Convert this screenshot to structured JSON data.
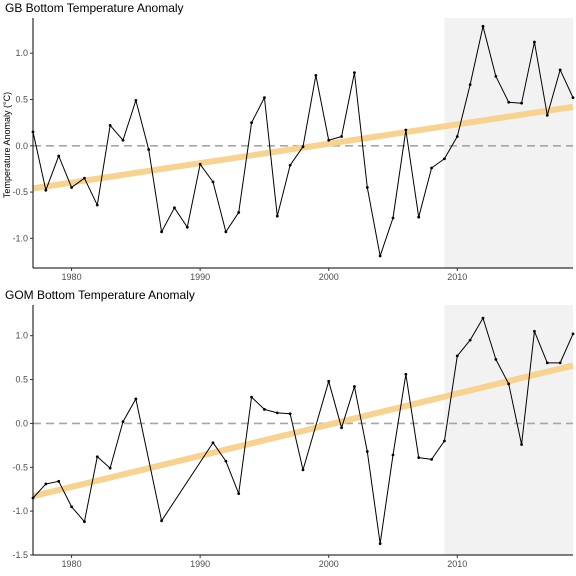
{
  "chart_data": [
    {
      "type": "line",
      "title": "GB Bottom Temperature Anomaly",
      "ylabel": "Temperature Anomaly (°C)",
      "xlabel": "",
      "xlim": [
        1977,
        2019
      ],
      "ylim": [
        -1.32,
        1.38
      ],
      "xticks": [
        1980,
        1990,
        2000,
        2010
      ],
      "yticks": [
        -1.0,
        -0.5,
        0.0,
        0.5,
        1.0
      ],
      "ytick_labels": [
        "-1.0",
        "-0.5",
        "0.0",
        "0.5",
        "1.0"
      ],
      "shaded_region": [
        2009,
        2019
      ],
      "reference_line": 0,
      "trend": {
        "x": [
          1977,
          2019
        ],
        "y": [
          -0.46,
          0.42
        ],
        "color": "#f8d28f"
      },
      "series": [
        {
          "color": "#000000",
          "x": [
            1977,
            1978,
            1979,
            1980,
            1981,
            1982,
            1983,
            1984,
            1985,
            1986,
            1987,
            1988,
            1989,
            1990,
            1991,
            1992,
            1993,
            1994,
            1995,
            1996,
            1997,
            1998,
            1999,
            2000,
            2001,
            2002,
            2003,
            2004,
            2005,
            2006,
            2007,
            2008,
            2009,
            2010,
            2011,
            2012,
            2013,
            2014,
            2015,
            2016,
            2017,
            2018,
            2019
          ],
          "y": [
            0.15,
            -0.48,
            -0.11,
            -0.45,
            -0.35,
            -0.64,
            0.22,
            0.06,
            0.49,
            -0.04,
            -0.93,
            -0.67,
            -0.88,
            -0.2,
            -0.39,
            -0.93,
            -0.72,
            0.25,
            0.52,
            -0.76,
            -0.21,
            -0.01,
            0.76,
            0.06,
            0.1,
            0.79,
            -0.45,
            -1.19,
            -0.78,
            0.17,
            -0.77,
            -0.24,
            -0.14,
            0.1,
            0.66,
            1.29,
            0.75,
            0.47,
            0.46,
            1.12,
            0.33,
            0.82,
            0.52
          ]
        }
      ]
    },
    {
      "type": "line",
      "title": "GOM Bottom Temperature Anomaly",
      "ylabel": "",
      "xlabel": "",
      "xlim": [
        1977,
        2019
      ],
      "ylim": [
        -1.5,
        1.35
      ],
      "xticks": [
        1980,
        1990,
        2000,
        2010
      ],
      "yticks": [
        -1.5,
        -1.0,
        -0.5,
        0.0,
        0.5,
        1.0
      ],
      "ytick_labels": [
        "-1.5",
        "-1.0",
        "-0.5",
        "0.0",
        "0.5",
        "1.0"
      ],
      "shaded_region": [
        2009,
        2019
      ],
      "reference_line": 0,
      "trend": {
        "x": [
          1977,
          2019
        ],
        "y": [
          -0.83,
          0.66
        ],
        "color": "#f8d28f"
      },
      "series": [
        {
          "color": "#000000",
          "x": [
            1977,
            1978,
            1979,
            1980,
            1981,
            1982,
            1983,
            1984,
            1985,
            1987,
            1991,
            1992,
            1993,
            1994,
            1995,
            1996,
            1997,
            1998,
            2000,
            2001,
            2002,
            2003,
            2004,
            2005,
            2006,
            2007,
            2008,
            2009,
            2010,
            2011,
            2012,
            2013,
            2014,
            2015,
            2016,
            2017,
            2018,
            2019
          ],
          "y": [
            -0.85,
            -0.69,
            -0.66,
            -0.95,
            -1.12,
            -0.38,
            -0.51,
            0.02,
            0.28,
            -1.11,
            -0.22,
            -0.43,
            -0.8,
            0.3,
            0.16,
            0.12,
            0.11,
            -0.53,
            0.48,
            -0.05,
            0.42,
            -0.32,
            -1.37,
            -0.36,
            0.56,
            -0.39,
            -0.41,
            -0.2,
            0.77,
            0.95,
            1.2,
            0.73,
            0.45,
            -0.24,
            1.05,
            0.69,
            0.69,
            1.02
          ]
        }
      ]
    }
  ]
}
